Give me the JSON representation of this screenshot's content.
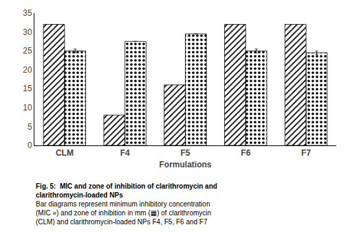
{
  "chart_data": {
    "type": "bar",
    "categories": [
      "CLM",
      "F4",
      "F5",
      "F6",
      "F7"
    ],
    "series": [
      {
        "color": "white",
        "values": [
          32,
          8,
          16,
          32,
          32
        ]
      },
      {
        "color": "dimgray",
        "values": [
          25,
          27.5,
          29.5,
          25,
          24.5
        ],
        "errors": [
          0.5,
          0,
          0,
          0.5,
          0.5
        ]
      }
    ],
    "xlabel": "Formulations",
    "ylim": [
      0,
      35
    ],
    "yticks": [
      0,
      5,
      10,
      15,
      20,
      25,
      30,
      35
    ],
    "grid": false,
    "annotations": [
      "Fig. 5:  MIC and zone of inhibition of clarithromycin and",
      "clarithromycin-loaded NPs",
      "Bar diagrams represent minimum inhibitory concentration",
      "(MIC ») and zone of inhibition in mm (▦) of clarithromycin",
      "(CLM) and clarithromycin-loaded NPs F4, F5, F6 and F7"
    ]
  }
}
